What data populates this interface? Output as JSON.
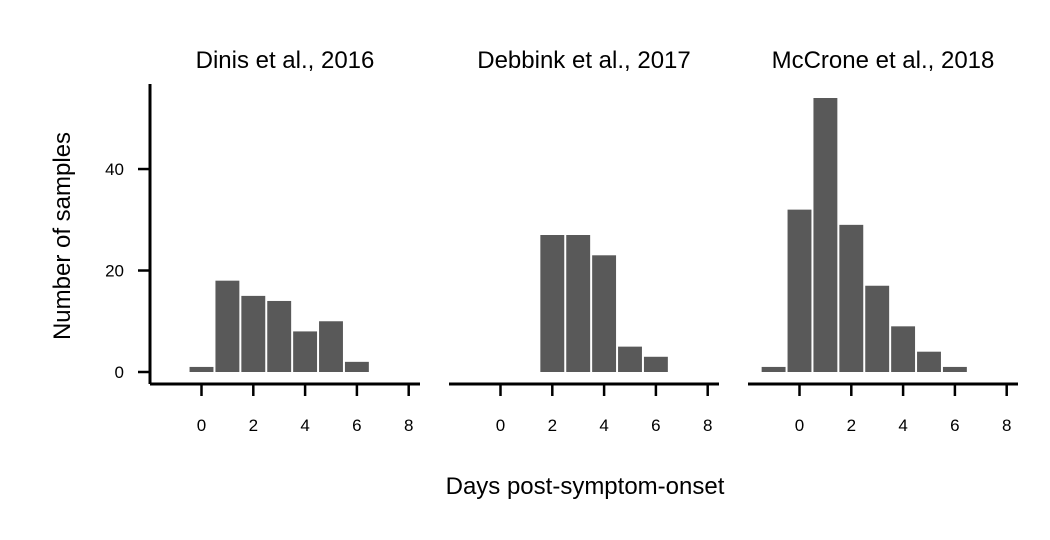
{
  "chart_data": {
    "type": "bar",
    "facet": "panels",
    "xlabel": "Days post-symptom-onset",
    "ylabel": "Number of samples",
    "ylim": [
      0,
      54
    ],
    "yticks": [
      0,
      20,
      40
    ],
    "xlim": [
      -2,
      8
    ],
    "xticks": [
      0,
      2,
      4,
      6,
      8
    ],
    "bar_color": "#595959",
    "grid": false,
    "panels": [
      {
        "title": "Dinis et al., 2016",
        "x": [
          0,
          1,
          2,
          3,
          4,
          5,
          6
        ],
        "values": [
          1,
          18,
          15,
          14,
          8,
          10,
          2
        ]
      },
      {
        "title": "Debbink et al., 2017",
        "x": [
          2,
          3,
          4,
          5,
          6
        ],
        "values": [
          27,
          27,
          23,
          5,
          3
        ]
      },
      {
        "title": "McCrone et al., 2018",
        "x": [
          -1,
          0,
          1,
          2,
          3,
          4,
          5,
          6
        ],
        "values": [
          1,
          32,
          54,
          29,
          17,
          9,
          4,
          1
        ]
      }
    ]
  }
}
